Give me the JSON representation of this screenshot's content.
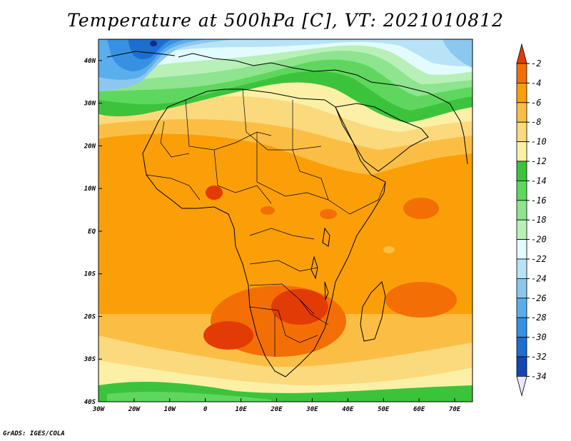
{
  "title": "Temperature at 500hPa [C], VT: 2021010812",
  "credit": "GrADS: IGES/COLA",
  "lat_labels": [
    "40N",
    "30N",
    "20N",
    "10N",
    "EQ",
    "10S",
    "20S",
    "30S",
    "40S"
  ],
  "lon_labels": [
    "30W",
    "20W",
    "10W",
    "0",
    "10E",
    "20E",
    "30E",
    "40E",
    "50E",
    "60E",
    "70E"
  ],
  "colorbar": {
    "labels": [
      "-2",
      "-4",
      "-6",
      "-8",
      "-10",
      "-12",
      "-14",
      "-16",
      "-18",
      "-20",
      "-22",
      "-24",
      "-26",
      "-28",
      "-30",
      "-32",
      "-34"
    ],
    "colors": [
      "#e33b06",
      "#f36f06",
      "#fa9f08",
      "#fbbe45",
      "#fbd97d",
      "#fbf0a6",
      "#3cc33c",
      "#5fd75f",
      "#8fe48f",
      "#b8f0b8",
      "#e2fbff",
      "#b8e2f6",
      "#8cc7f0",
      "#5aaeeb",
      "#3791e2",
      "#1c6ed1",
      "#1147b4",
      "#0a2a8c"
    ]
  },
  "chart_data": {
    "type": "heatmap",
    "variable": "Temperature at 500hPa",
    "units": "C",
    "valid_time": "2021010812",
    "lon_range": [
      -30,
      75
    ],
    "lat_range": [
      -40,
      45
    ],
    "contour_levels": [
      -34,
      -32,
      -30,
      -28,
      -26,
      -24,
      -22,
      -20,
      -18,
      -16,
      -14,
      -12,
      -10,
      -8,
      -6,
      -4,
      -2
    ]
  }
}
